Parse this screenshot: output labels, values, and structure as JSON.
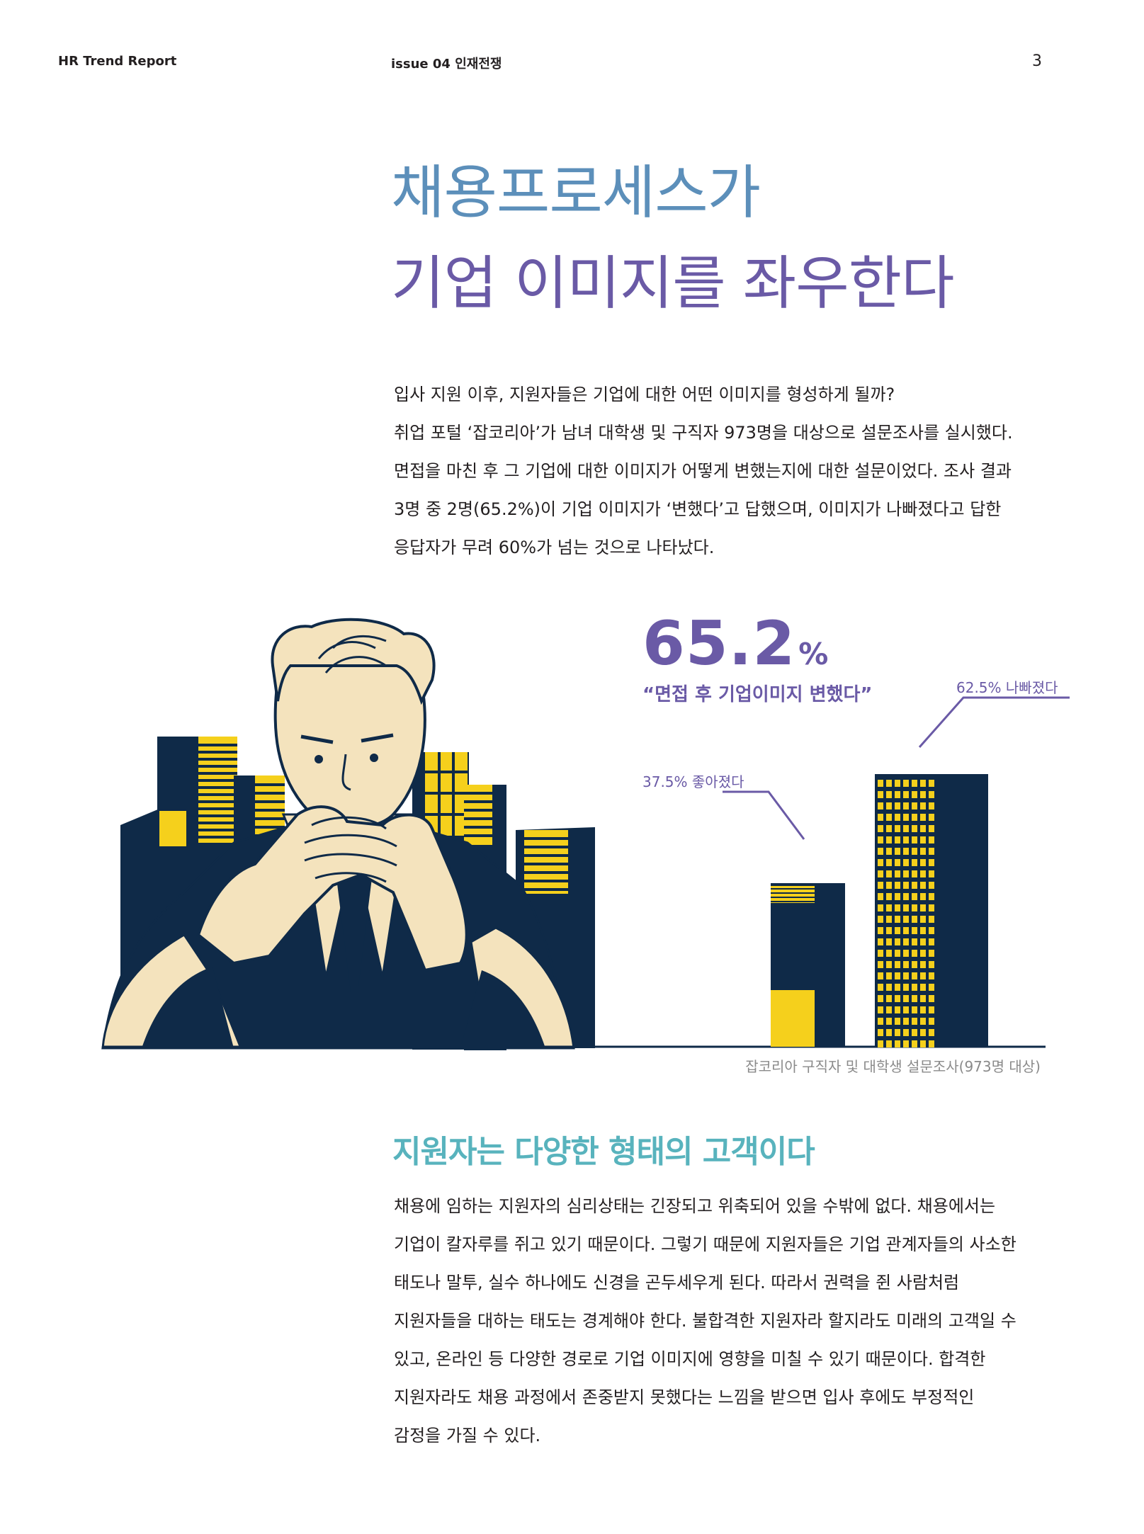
{
  "header": {
    "left": "HR Trend Report",
    "issue": "issue 04  인재전쟁",
    "page": "3"
  },
  "title": {
    "line1": "채용프로세스가",
    "line2": "기업 이미지를 좌우한다"
  },
  "intro": [
    "입사 지원 이후, 지원자들은 기업에 대한 어떤 이미지를 형성하게 될까?",
    "취업 포털 ‘잡코리아’가 남녀 대학생 및 구직자 973명을 대상으로 설문조사를 실시했다.",
    "면접을 마친 후 그 기업에 대한 이미지가 어떻게 변했는지에 대한 설문이었다. 조사 결과",
    "3명 중 2명(65.2%)이 기업 이미지가 ‘변했다’고 답했으며, 이미지가 나빠졌다고 답한",
    "응답자가 무려 60%가 넘는 것으로 나타났다."
  ],
  "stat": {
    "value": "65.2",
    "unit": "%",
    "quote": "“면접 후 기업이미지 변했다”"
  },
  "chart_data": {
    "type": "bar",
    "categories": [
      "37.5% 좋아졌다",
      "62.5% 나빠졌다"
    ],
    "values": [
      37.5,
      62.5
    ],
    "ylim": [
      0,
      100
    ],
    "colors": {
      "bar": "#0f2a48",
      "accent": "#f5d01c",
      "label": "#6a5aa6"
    }
  },
  "source": "잡코리아 구직자 및 대학생 설문조사(973명 대상)",
  "section2": {
    "heading": "지원자는 다양한 형태의 고객이다",
    "body": [
      "채용에 임하는 지원자의 심리상태는 긴장되고 위축되어 있을 수밖에 없다. 채용에서는",
      "기업이 칼자루를 쥐고 있기 때문이다. 그렇기 때문에 지원자들은 기업 관계자들의 사소한",
      "태도나 말투, 실수 하나에도 신경을 곤두세우게 된다. 따라서 권력을 쥔 사람처럼",
      "지원자들을 대하는 태도는 경계해야 한다. 불합격한 지원자라 할지라도 미래의 고객일 수",
      "있고, 온라인 등 다양한 경로로 기업 이미지에 영향을 미칠 수 있기 때문이다. 합격한",
      "지원자라도 채용 과정에서 존중받지 못했다는 느낌을 받으면 입사 후에도 부정적인",
      "감정을 가질 수 있다."
    ]
  },
  "colors": {
    "title_top": "#5c8fba",
    "title_bottom": "#6a5aa6",
    "subheading": "#58b3bd",
    "navy": "#0f2a48",
    "yellow": "#f5d01c",
    "skin": "#f4e3bd"
  }
}
